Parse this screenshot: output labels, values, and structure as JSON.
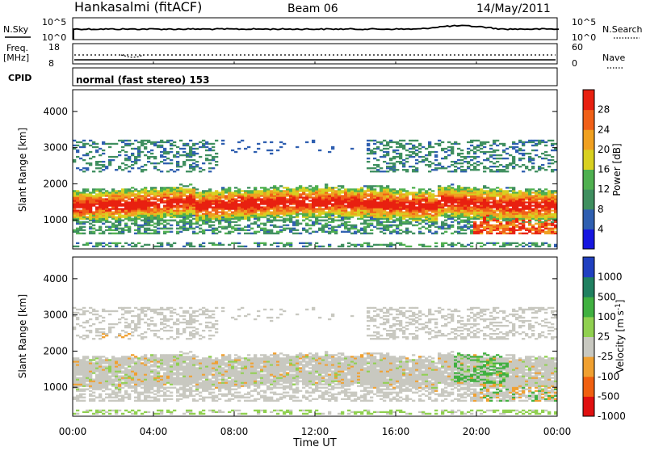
{
  "header": {
    "station": "Hankasalmi (fitACF)",
    "beam": "Beam 06",
    "date": "14/May/2011"
  },
  "top_panels": {
    "nsky_label": "N.Sky",
    "nsky_ticks": [
      "10^5",
      "10^0"
    ],
    "nsearch_label": "N.Search",
    "nsearch_ticks": [
      "10^5",
      "10^0"
    ],
    "freq_label": "Freq.",
    "freq_unit": "[MHz]",
    "freq_ticks": [
      "18",
      "8"
    ],
    "nave_label": "Nave",
    "nave_ticks": [
      "60",
      "0"
    ],
    "cpid_label": "CPID",
    "cpid_text": "normal (fast stereo) 153"
  },
  "chart_data": [
    {
      "type": "heatmap",
      "name": "power",
      "ylabel": "Slant Range [km]",
      "yticks": [
        "1000",
        "2000",
        "3000",
        "4000"
      ],
      "ylim": [
        200,
        4600
      ],
      "colorbar_label": "Power [dB]",
      "colorbar_ticks": [
        "4",
        "8",
        "12",
        "16",
        "20",
        "24",
        "28"
      ],
      "colorbar_colors": [
        "#1616e0",
        "#2f5fb0",
        "#3f8f5f",
        "#4fb04f",
        "#d8d020",
        "#f0a020",
        "#f06018",
        "#e82010"
      ]
    },
    {
      "type": "heatmap",
      "name": "velocity",
      "ylabel": "Slant Range [km]",
      "yticks": [
        "1000",
        "2000",
        "3000",
        "4000"
      ],
      "ylim": [
        200,
        4600
      ],
      "colorbar_label": "Velocity [m s^-1]",
      "colorbar_ticks": [
        "1000",
        "500",
        "100",
        "25",
        "-25",
        "-100",
        "-500",
        "-1000"
      ],
      "colorbar_colors": [
        "#2040c0",
        "#208060",
        "#40b040",
        "#90d050",
        "#c8c8c0",
        "#f0a030",
        "#f06010",
        "#e01010"
      ]
    }
  ],
  "xaxis": {
    "label": "Time UT",
    "ticks": [
      "00:00",
      "04:00",
      "08:00",
      "12:00",
      "16:00",
      "20:00",
      "00:00"
    ]
  }
}
